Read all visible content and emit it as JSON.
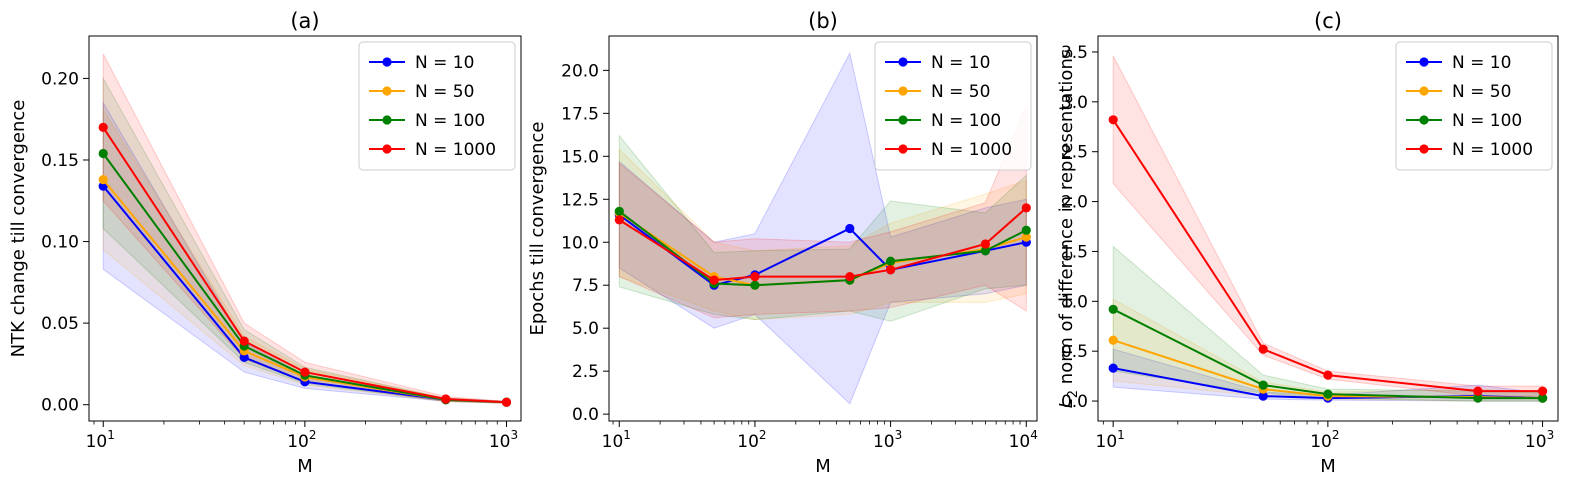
{
  "figure": {
    "caption_labels": [
      "(a)",
      "(b)",
      "(c)"
    ]
  },
  "chart_data": [
    {
      "type": "line",
      "title": "(a)",
      "xlabel": "M",
      "ylabel": "NTK change till convergence",
      "xscale": "log",
      "x": [
        10,
        50,
        100,
        500,
        1000
      ],
      "xlim": [
        8.5,
        1180
      ],
      "ylim": [
        -0.01,
        0.226
      ],
      "yticks": [
        0.0,
        0.05,
        0.1,
        0.15,
        0.2
      ],
      "ytick_labels": [
        "0.00",
        "0.05",
        "0.10",
        "0.15",
        "0.20"
      ],
      "xticks": [
        10,
        100,
        1000
      ],
      "xtick_labels": [
        {
          "base": "10",
          "exp": "1"
        },
        {
          "base": "10",
          "exp": "2"
        },
        {
          "base": "10",
          "exp": "3"
        }
      ],
      "legend_position": "top-right",
      "series": [
        {
          "name": "N = 10",
          "color": "#0000ff",
          "values": [
            0.134,
            0.029,
            0.014,
            0.003,
            0.0015
          ],
          "lower": [
            0.083,
            0.02,
            0.01,
            0.002,
            0.001
          ],
          "upper": [
            0.185,
            0.038,
            0.018,
            0.004,
            0.002
          ]
        },
        {
          "name": "N = 50",
          "color": "#ffa500",
          "values": [
            0.138,
            0.033,
            0.017,
            0.003,
            0.0015
          ],
          "lower": [
            0.095,
            0.024,
            0.012,
            0.002,
            0.001
          ],
          "upper": [
            0.181,
            0.042,
            0.022,
            0.004,
            0.002
          ]
        },
        {
          "name": "N = 100",
          "color": "#008000",
          "values": [
            0.154,
            0.036,
            0.018,
            0.003,
            0.0015
          ],
          "lower": [
            0.108,
            0.026,
            0.013,
            0.002,
            0.001
          ],
          "upper": [
            0.2,
            0.046,
            0.023,
            0.004,
            0.002
          ]
        },
        {
          "name": "N = 1000",
          "color": "#ff0000",
          "values": [
            0.17,
            0.039,
            0.02,
            0.0035,
            0.0015
          ],
          "lower": [
            0.125,
            0.028,
            0.014,
            0.002,
            0.001
          ],
          "upper": [
            0.215,
            0.05,
            0.026,
            0.005,
            0.002
          ]
        }
      ]
    },
    {
      "type": "line",
      "title": "(b)",
      "xlabel": "M",
      "ylabel": "Epochs till convergence",
      "xscale": "log",
      "x": [
        10,
        50,
        100,
        500,
        1000,
        5000,
        10000
      ],
      "xlim": [
        8.4,
        12000
      ],
      "ylim": [
        -0.4,
        22.0
      ],
      "yticks": [
        0.0,
        2.5,
        5.0,
        7.5,
        10.0,
        12.5,
        15.0,
        17.5,
        20.0
      ],
      "ytick_labels": [
        "0.0",
        "2.5",
        "5.0",
        "7.5",
        "10.0",
        "12.5",
        "15.0",
        "17.5",
        "20.0"
      ],
      "xticks": [
        10,
        100,
        1000,
        10000
      ],
      "xtick_labels": [
        {
          "base": "10",
          "exp": "1"
        },
        {
          "base": "10",
          "exp": "2"
        },
        {
          "base": "10",
          "exp": "3"
        },
        {
          "base": "10",
          "exp": "4"
        }
      ],
      "legend_position": "top-right",
      "series": [
        {
          "name": "N = 10",
          "color": "#0000ff",
          "values": [
            11.6,
            7.5,
            8.1,
            10.8,
            8.4,
            9.5,
            10.0
          ],
          "lower": [
            8.5,
            5.0,
            5.8,
            0.6,
            6.5,
            7.0,
            7.5
          ],
          "upper": [
            14.7,
            10.0,
            10.5,
            21.0,
            10.3,
            12.0,
            12.5
          ]
        },
        {
          "name": "N = 50",
          "color": "#ffa500",
          "values": [
            11.7,
            8.0,
            7.5,
            7.8,
            8.8,
            9.6,
            10.3
          ],
          "lower": [
            8.0,
            6.0,
            5.5,
            5.8,
            6.5,
            6.5,
            7.0
          ],
          "upper": [
            15.4,
            10.0,
            9.5,
            9.8,
            11.1,
            12.8,
            13.6
          ]
        },
        {
          "name": "N = 100",
          "color": "#008000",
          "values": [
            11.8,
            7.6,
            7.5,
            7.8,
            8.9,
            9.5,
            10.7
          ],
          "lower": [
            7.4,
            5.8,
            5.5,
            6.0,
            5.4,
            7.3,
            7.5
          ],
          "upper": [
            16.2,
            9.4,
            9.5,
            9.6,
            12.4,
            11.7,
            13.9
          ]
        },
        {
          "name": "N = 1000",
          "color": "#ff0000",
          "values": [
            11.3,
            7.8,
            8.0,
            8.0,
            8.4,
            9.9,
            12.0
          ],
          "lower": [
            8.0,
            5.6,
            5.8,
            6.0,
            6.2,
            7.5,
            6.0
          ],
          "upper": [
            14.6,
            10.0,
            10.2,
            10.0,
            10.6,
            12.3,
            18.0
          ]
        }
      ]
    },
    {
      "type": "line",
      "title": "(c)",
      "xlabel": "M",
      "ylabel_prefix": "L",
      "ylabel_sub": "2",
      "ylabel_rest": " norm of difference in representations",
      "xscale": "log",
      "x": [
        10,
        50,
        100,
        500,
        1000
      ],
      "xlim": [
        8.5,
        1180
      ],
      "ylim": [
        -0.2,
        3.66
      ],
      "yticks": [
        0.0,
        0.5,
        1.0,
        1.5,
        2.0,
        2.5,
        3.0,
        3.5
      ],
      "ytick_labels": [
        "0.0",
        "0.5",
        "1.0",
        "1.5",
        "2.0",
        "2.5",
        "3.0",
        "3.5"
      ],
      "xticks": [
        10,
        100,
        1000
      ],
      "xtick_labels": [
        {
          "base": "10",
          "exp": "1"
        },
        {
          "base": "10",
          "exp": "2"
        },
        {
          "base": "10",
          "exp": "3"
        }
      ],
      "legend_position": "top-right",
      "series": [
        {
          "name": "N = 10",
          "color": "#0000ff",
          "values": [
            0.33,
            0.05,
            0.03,
            0.05,
            0.03
          ],
          "lower": [
            0.14,
            0.02,
            0.01,
            0.0,
            0.0
          ],
          "upper": [
            0.52,
            0.09,
            0.06,
            0.16,
            0.08
          ]
        },
        {
          "name": "N = 50",
          "color": "#ffa500",
          "values": [
            0.61,
            0.12,
            0.05,
            0.04,
            0.03
          ],
          "lower": [
            0.2,
            0.05,
            0.02,
            0.0,
            0.0
          ],
          "upper": [
            1.02,
            0.19,
            0.09,
            0.12,
            0.08
          ]
        },
        {
          "name": "N = 100",
          "color": "#008000",
          "values": [
            0.92,
            0.16,
            0.07,
            0.03,
            0.03
          ],
          "lower": [
            0.3,
            0.08,
            0.03,
            0.0,
            0.0
          ],
          "upper": [
            1.55,
            0.26,
            0.12,
            0.1,
            0.08
          ]
        },
        {
          "name": "N = 1000",
          "color": "#ff0000",
          "values": [
            2.82,
            0.52,
            0.26,
            0.1,
            0.1
          ],
          "lower": [
            2.18,
            0.46,
            0.22,
            0.05,
            0.05
          ],
          "upper": [
            3.46,
            0.58,
            0.3,
            0.15,
            0.15
          ]
        }
      ]
    }
  ]
}
